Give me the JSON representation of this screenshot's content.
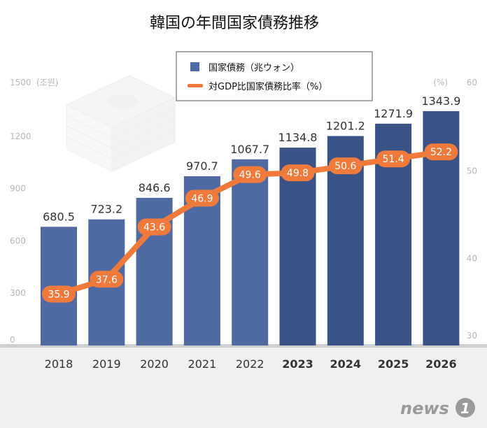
{
  "chart_data": {
    "type": "bar",
    "title": "韓国の年間国家債務推移",
    "categories": [
      "2018",
      "2019",
      "2020",
      "2021",
      "2022",
      "2023",
      "2024",
      "2025",
      "2026"
    ],
    "series": [
      {
        "name": "国家債務（兆ウォン）",
        "type": "bar",
        "axis": "left",
        "values": [
          680.5,
          723.2,
          846.6,
          970.7,
          1067.7,
          1134.8,
          1201.2,
          1271.9,
          1343.9
        ],
        "labels": [
          "680.5",
          "723.2",
          "846.6",
          "970.7",
          "1067.7",
          "1134.8",
          "1201.2",
          "1271.9",
          "1343.9"
        ],
        "colors": [
          "#4f6aa3",
          "#4f6aa3",
          "#4f6aa3",
          "#4f6aa3",
          "#4f6aa3",
          "#3a5286",
          "#3a5286",
          "#3a5286",
          "#3a5286"
        ]
      },
      {
        "name": "対GDP比国家債務比率（%）",
        "type": "line",
        "axis": "right",
        "values": [
          35.9,
          37.6,
          43.6,
          46.9,
          49.6,
          49.8,
          50.6,
          51.4,
          52.2
        ],
        "labels": [
          "35.9",
          "37.6",
          "43.6",
          "46.9",
          "49.6",
          "49.8",
          "50.6",
          "51.4",
          "52.2"
        ],
        "color": "#f07a3c"
      }
    ],
    "y_left": {
      "unit": "(조원)",
      "ylim": [
        0,
        1500
      ],
      "ticks": [
        "0",
        "300",
        "600",
        "900",
        "1200",
        "1500"
      ]
    },
    "y_right": {
      "unit": "(%)",
      "ylim": [
        30,
        60
      ],
      "ticks": [
        "30",
        "40",
        "50",
        "60"
      ]
    },
    "legend": {
      "placement": "top-center",
      "items": [
        "国家債務（兆ウォン）",
        "対GDP比国家債務比率（%）"
      ]
    },
    "grid": false
  },
  "watermark": {
    "text": "news",
    "badge": "1"
  },
  "colors": {
    "bar_past": "#4f6aa3",
    "bar_future": "#3a5286",
    "line": "#f07a3c",
    "baseline": "#cfcfcf",
    "footer_band": "#f0f0f0",
    "tick": "#b8b8b8"
  }
}
